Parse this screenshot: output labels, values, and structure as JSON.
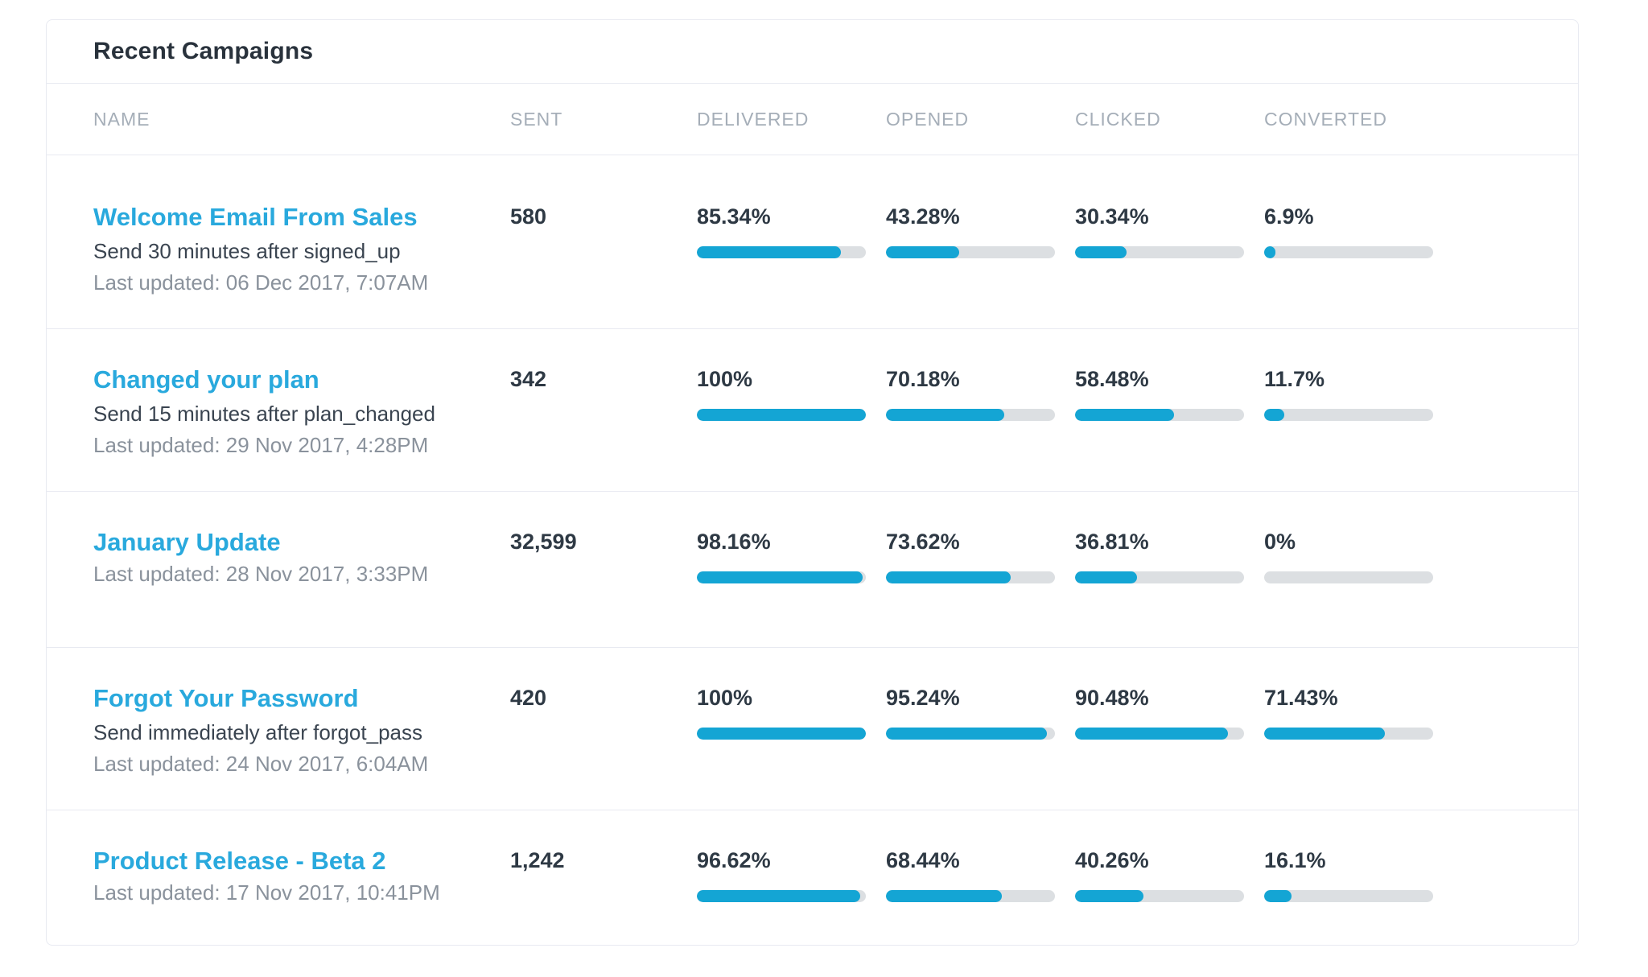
{
  "colors": {
    "link_blue": "#29a9dd",
    "bar_blue": "#14a5d4",
    "bar_track": "#dcdfe2"
  },
  "card": {
    "title": "Recent Campaigns",
    "columns": [
      "NAME",
      "SENT",
      "DELIVERED",
      "OPENED",
      "CLICKED",
      "CONVERTED"
    ],
    "rows": [
      {
        "name": "Welcome Email From Sales",
        "description": "Send 30 minutes after signed_up",
        "last_updated": "Last updated: 06 Dec 2017, 7:07AM",
        "sent": "580",
        "metrics": [
          {
            "label": "85.34%",
            "percent": 85.34
          },
          {
            "label": "43.28%",
            "percent": 43.28
          },
          {
            "label": "30.34%",
            "percent": 30.34
          },
          {
            "label": "6.9%",
            "percent": 6.9
          }
        ]
      },
      {
        "name": "Changed your plan",
        "description": "Send 15 minutes after plan_changed",
        "last_updated": "Last updated: 29 Nov 2017, 4:28PM",
        "sent": "342",
        "metrics": [
          {
            "label": "100%",
            "percent": 100
          },
          {
            "label": "70.18%",
            "percent": 70.18
          },
          {
            "label": "58.48%",
            "percent": 58.48
          },
          {
            "label": "11.7%",
            "percent": 11.7
          }
        ]
      },
      {
        "name": "January Update",
        "description": "",
        "last_updated": "Last updated: 28 Nov 2017, 3:33PM",
        "sent": "32,599",
        "metrics": [
          {
            "label": "98.16%",
            "percent": 98.16
          },
          {
            "label": "73.62%",
            "percent": 73.62
          },
          {
            "label": "36.81%",
            "percent": 36.81
          },
          {
            "label": "0%",
            "percent": 0
          }
        ]
      },
      {
        "name": "Forgot Your Password",
        "description": "Send immediately after forgot_pass",
        "last_updated": "Last updated: 24 Nov 2017, 6:04AM",
        "sent": "420",
        "metrics": [
          {
            "label": "100%",
            "percent": 100
          },
          {
            "label": "95.24%",
            "percent": 95.24
          },
          {
            "label": "90.48%",
            "percent": 90.48
          },
          {
            "label": "71.43%",
            "percent": 71.43
          }
        ]
      },
      {
        "name": "Product Release - Beta 2",
        "description": "",
        "last_updated": "Last updated: 17 Nov 2017, 10:41PM",
        "sent": "1,242",
        "metrics": [
          {
            "label": "96.62%",
            "percent": 96.62
          },
          {
            "label": "68.44%",
            "percent": 68.44
          },
          {
            "label": "40.26%",
            "percent": 40.26
          },
          {
            "label": "16.1%",
            "percent": 16.1
          }
        ]
      }
    ]
  }
}
